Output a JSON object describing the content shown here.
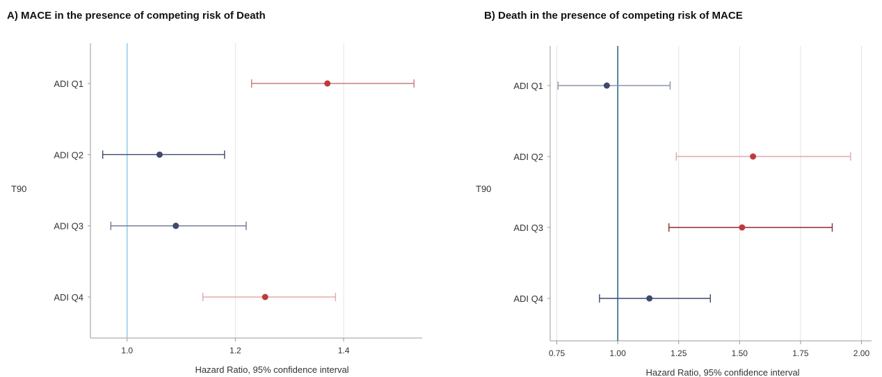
{
  "chart_data": [
    {
      "type": "forest",
      "title": "A) MACE in the presence of competing risk of Death",
      "group_label": "T90",
      "xlabel": "Hazard Ratio, 95% confidence interval",
      "xlim": [
        0.94,
        1.54
      ],
      "xticks": [
        1.0,
        1.2,
        1.4
      ],
      "xtick_labels": [
        "1.0",
        "1.2",
        "1.4"
      ],
      "reference_line": 1.0,
      "reference_color": "#8ecfe6",
      "grid": true,
      "categories": [
        "ADI Q1",
        "ADI Q2",
        "ADI Q3",
        "ADI Q4"
      ],
      "estimates": [
        1.37,
        1.06,
        1.09,
        1.255
      ],
      "lower": [
        1.23,
        0.955,
        0.97,
        1.14
      ],
      "upper": [
        1.53,
        1.18,
        1.22,
        1.385
      ],
      "colors": [
        "#c0393f",
        "#3d4a6b",
        "#3d4a6b",
        "#c0393f"
      ],
      "line_colors": [
        "#c97a7e",
        "#3d4a6b",
        "#6c7590",
        "#e3a8ab"
      ]
    },
    {
      "type": "forest",
      "title": "B) Death in the presence of competing risk of MACE",
      "group_label": "T90",
      "xlabel": "Hazard Ratio, 95% confidence interval",
      "xlim": [
        0.74,
        2.03
      ],
      "xticks": [
        0.75,
        1.0,
        1.25,
        1.5,
        1.75,
        2.0
      ],
      "xtick_labels": [
        "0.75",
        "1.00",
        "1.25",
        "1.50",
        "1.75",
        "2.00"
      ],
      "reference_line": 1.0,
      "reference_color": "#1f5f7a",
      "grid": true,
      "categories": [
        "ADI Q1",
        "ADI Q2",
        "ADI Q3",
        "ADI Q4"
      ],
      "estimates": [
        0.955,
        1.555,
        1.51,
        1.13
      ],
      "lower": [
        0.755,
        1.24,
        1.21,
        0.925
      ],
      "upper": [
        1.215,
        1.955,
        1.88,
        1.38
      ],
      "colors": [
        "#3d4a6b",
        "#c0393f",
        "#c0393f",
        "#3d4a6b"
      ],
      "line_colors": [
        "#8a93aa",
        "#e3a8ab",
        "#8c2a30",
        "#3d4a6b"
      ]
    }
  ]
}
